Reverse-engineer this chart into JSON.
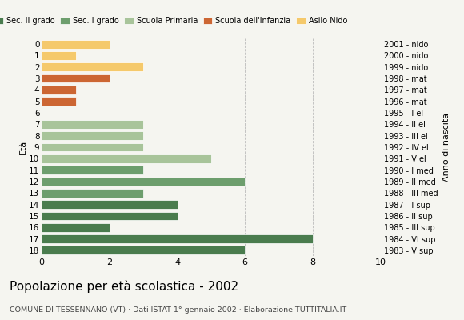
{
  "ages": [
    18,
    17,
    16,
    15,
    14,
    13,
    12,
    11,
    10,
    9,
    8,
    7,
    6,
    5,
    4,
    3,
    2,
    1,
    0
  ],
  "right_labels": [
    "1983 - V sup",
    "1984 - VI sup",
    "1985 - III sup",
    "1986 - II sup",
    "1987 - I sup",
    "1988 - III med",
    "1989 - II med",
    "1990 - I med",
    "1991 - V el",
    "1992 - IV el",
    "1993 - III el",
    "1994 - II el",
    "1995 - I el",
    "1996 - mat",
    "1997 - mat",
    "1998 - mat",
    "1999 - nido",
    "2000 - nido",
    "2001 - nido"
  ],
  "values": [
    6,
    8,
    2,
    4,
    4,
    3,
    6,
    3,
    5,
    3,
    3,
    3,
    0,
    1,
    1,
    2,
    3,
    1,
    2
  ],
  "colors": [
    "#4a7c4e",
    "#4a7c4e",
    "#4a7c4e",
    "#4a7c4e",
    "#4a7c4e",
    "#6d9e6d",
    "#6d9e6d",
    "#6d9e6d",
    "#a8c49a",
    "#a8c49a",
    "#a8c49a",
    "#a8c49a",
    "#a8c49a",
    "#cc6633",
    "#cc6633",
    "#cc6633",
    "#f5c96b",
    "#f5c96b",
    "#f5c96b"
  ],
  "legend_labels": [
    "Sec. II grado",
    "Sec. I grado",
    "Scuola Primaria",
    "Scuola dell'Infanzia",
    "Asilo Nido"
  ],
  "legend_colors": [
    "#4a7c4e",
    "#6d9e6d",
    "#a8c49a",
    "#cc6633",
    "#f5c96b"
  ],
  "title": "Popolazione per età scolastica - 2002",
  "subtitle": "COMUNE DI TESSENNANO (VT) · Dati ISTAT 1° gennaio 2002 · Elaborazione TUTTITALIA.IT",
  "ylabel": "Età",
  "xlabel_right": "Anno di nascita",
  "xlim": [
    0,
    10
  ],
  "xticks": [
    0,
    2,
    4,
    6,
    8,
    10
  ],
  "dashed_line_x": 2,
  "background_color": "#f5f5f0"
}
